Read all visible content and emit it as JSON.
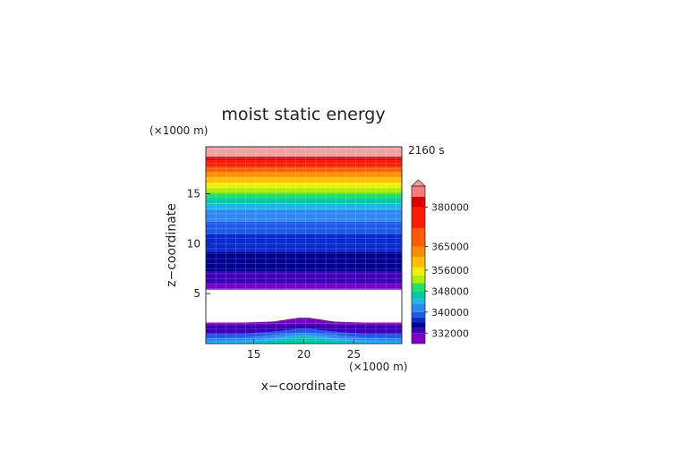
{
  "chart_data": {
    "type": "heatmap",
    "title": "moist static energy",
    "time_label": "2160 s",
    "xlabel": "x−coordinate",
    "ylabel": "z−coordinate",
    "x_unit": "(×1000 m)",
    "y_unit": "(×1000 m)",
    "xlim": [
      10.2,
      29.8
    ],
    "ylim": [
      0,
      19.7
    ],
    "x_ticks": [
      15,
      20,
      25
    ],
    "y_ticks": [
      5,
      10,
      15
    ],
    "colorbar": {
      "min": 328000,
      "max": 388000,
      "extend": "max",
      "tick_labels": [
        {
          "label": "332000",
          "value": 332000
        },
        {
          "label": "340000",
          "value": 340000
        },
        {
          "label": "348000",
          "value": 348000
        },
        {
          "label": "356000",
          "value": 356000
        },
        {
          "label": "365000",
          "value": 365000
        },
        {
          "label": "380000",
          "value": 380000
        }
      ],
      "levels": [
        {
          "value": 328000,
          "color": "#7a00c8"
        },
        {
          "value": 332000,
          "color": "#3a00b5"
        },
        {
          "value": 334000,
          "color": "#000090"
        },
        {
          "value": 336000,
          "color": "#0a2ad0"
        },
        {
          "value": 338000,
          "color": "#1e5ae8"
        },
        {
          "value": 340000,
          "color": "#2e88f0"
        },
        {
          "value": 343000,
          "color": "#1eb4f0"
        },
        {
          "value": 345000,
          "color": "#00cca8"
        },
        {
          "value": 348000,
          "color": "#22e06a"
        },
        {
          "value": 351000,
          "color": "#aaf000"
        },
        {
          "value": 354000,
          "color": "#f0f000"
        },
        {
          "value": 357000,
          "color": "#ffc000"
        },
        {
          "value": 361000,
          "color": "#ff8c00"
        },
        {
          "value": 365000,
          "color": "#ff5a00"
        },
        {
          "value": 372000,
          "color": "#ff1a00"
        },
        {
          "value": 380000,
          "color": "#dd0000"
        },
        {
          "value": 384000,
          "color": "#ff7a7a"
        }
      ],
      "overflow_color": "#f4a0a0"
    },
    "upper_layers": [
      {
        "z_bottom": 5.4,
        "z_top": 6.0,
        "color": "#7a00c8"
      },
      {
        "z_bottom": 6.0,
        "z_top": 7.2,
        "color": "#3a00b5"
      },
      {
        "z_bottom": 7.2,
        "z_top": 9.2,
        "color": "#000090"
      },
      {
        "z_bottom": 9.2,
        "z_top": 11.0,
        "color": "#0a2ad0"
      },
      {
        "z_bottom": 11.0,
        "z_top": 12.2,
        "color": "#1e5ae8"
      },
      {
        "z_bottom": 12.2,
        "z_top": 13.4,
        "color": "#2e88f0"
      },
      {
        "z_bottom": 13.4,
        "z_top": 14.0,
        "color": "#1eb4f0"
      },
      {
        "z_bottom": 14.0,
        "z_top": 14.6,
        "color": "#00cca8"
      },
      {
        "z_bottom": 14.6,
        "z_top": 15.1,
        "color": "#22e06a"
      },
      {
        "z_bottom": 15.1,
        "z_top": 15.6,
        "color": "#aaf000"
      },
      {
        "z_bottom": 15.6,
        "z_top": 16.1,
        "color": "#f0f000"
      },
      {
        "z_bottom": 16.1,
        "z_top": 16.7,
        "color": "#ffc000"
      },
      {
        "z_bottom": 16.7,
        "z_top": 17.2,
        "color": "#ff8c00"
      },
      {
        "z_bottom": 17.2,
        "z_top": 17.7,
        "color": "#ff5a00"
      },
      {
        "z_bottom": 17.7,
        "z_top": 18.3,
        "color": "#ff1a00"
      },
      {
        "z_bottom": 18.3,
        "z_top": 18.7,
        "color": "#dd0000"
      },
      {
        "z_bottom": 18.7,
        "z_top": 19.7,
        "color": "#f4a0a0"
      }
    ],
    "lower_layers": [
      {
        "name": "top",
        "z": [
          2.1,
          2.1,
          2.2,
          2.6,
          2.6,
          2.2,
          2.1,
          2.1
        ],
        "color": "#7a00c8"
      },
      {
        "name": "purple-band",
        "z": [
          1.8,
          1.8,
          1.9,
          2.0,
          2.0,
          1.9,
          1.8,
          1.8
        ],
        "color": "#3a00b5"
      },
      {
        "name": "blue",
        "z": [
          1.0,
          1.0,
          1.2,
          1.5,
          1.5,
          1.2,
          1.0,
          1.0
        ],
        "color": "#1e5ae8"
      },
      {
        "name": "light-blue",
        "z": [
          0.55,
          0.6,
          0.9,
          1.1,
          1.1,
          0.9,
          0.6,
          0.55
        ],
        "color": "#2e88f0"
      },
      {
        "name": "cyan",
        "z": [
          0.2,
          0.3,
          0.6,
          0.9,
          0.9,
          0.6,
          0.3,
          0.2
        ],
        "color": "#1eb4f0"
      },
      {
        "name": "green-core",
        "z": [
          0,
          0,
          0.25,
          0.7,
          0.7,
          0.25,
          0,
          0
        ],
        "color": "#00cca8"
      }
    ],
    "lower_x": [
      10.2,
      14,
      17,
      19.5,
      20.5,
      23,
      26,
      29.8
    ],
    "white_gap": [
      2.6,
      5.4
    ],
    "grid": true
  }
}
